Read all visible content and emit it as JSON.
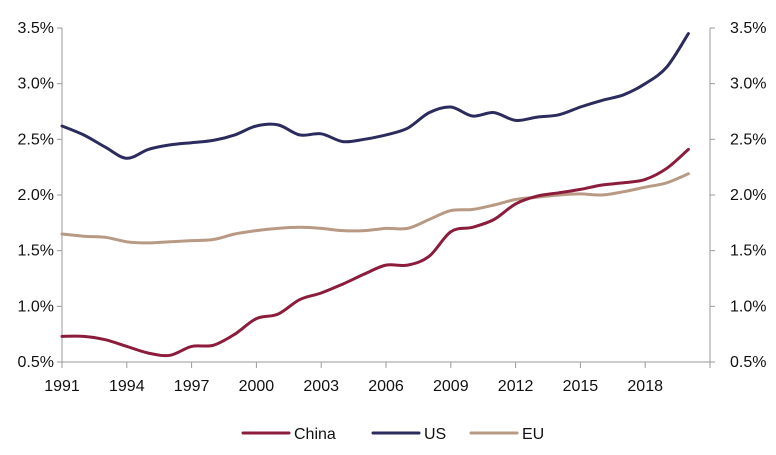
{
  "chart_data": {
    "type": "line",
    "title": "",
    "xlabel": "",
    "ylabel": "",
    "x": [
      1991,
      1992,
      1993,
      1994,
      1995,
      1996,
      1997,
      1998,
      1999,
      2000,
      2001,
      2002,
      2003,
      2004,
      2005,
      2006,
      2007,
      2008,
      2009,
      2010,
      2011,
      2012,
      2013,
      2014,
      2015,
      2016,
      2017,
      2018,
      2019,
      2020
    ],
    "xticks": [
      "1991",
      "1994",
      "1997",
      "2000",
      "2003",
      "2006",
      "2009",
      "2012",
      "2015",
      "2018"
    ],
    "xlim": [
      1991,
      2021
    ],
    "ylim": [
      0.5,
      3.5
    ],
    "yticks_left": [
      "0.5%",
      "1.0%",
      "1.5%",
      "2.0%",
      "2.5%",
      "3.0%",
      "3.5%"
    ],
    "yticks_right": [
      "0.5%",
      "1.0%",
      "1.5%",
      "2.0%",
      "2.5%",
      "3.0%",
      "3.5%"
    ],
    "grid": false,
    "legend_position": "bottom",
    "series": [
      {
        "name": "China",
        "color": "#8c1c3c",
        "values": [
          0.73,
          0.73,
          0.7,
          0.64,
          0.58,
          0.56,
          0.64,
          0.65,
          0.75,
          0.89,
          0.93,
          1.06,
          1.12,
          1.2,
          1.29,
          1.37,
          1.37,
          1.45,
          1.67,
          1.71,
          1.78,
          1.92,
          1.99,
          2.02,
          2.05,
          2.09,
          2.11,
          2.14,
          2.24,
          2.41
        ]
      },
      {
        "name": "US",
        "color": "#2b2b5e",
        "values": [
          2.62,
          2.54,
          2.43,
          2.33,
          2.41,
          2.45,
          2.47,
          2.49,
          2.54,
          2.62,
          2.63,
          2.54,
          2.55,
          2.48,
          2.5,
          2.54,
          2.6,
          2.74,
          2.79,
          2.71,
          2.74,
          2.67,
          2.7,
          2.72,
          2.79,
          2.85,
          2.9,
          3.0,
          3.15,
          3.45
        ]
      },
      {
        "name": "EU",
        "color": "#b89a84",
        "values": [
          1.65,
          1.63,
          1.62,
          1.58,
          1.57,
          1.58,
          1.59,
          1.6,
          1.65,
          1.68,
          1.7,
          1.71,
          1.7,
          1.68,
          1.68,
          1.7,
          1.7,
          1.78,
          1.86,
          1.87,
          1.91,
          1.96,
          1.98,
          2.0,
          2.01,
          2.0,
          2.03,
          2.07,
          2.11,
          2.19
        ]
      }
    ]
  }
}
